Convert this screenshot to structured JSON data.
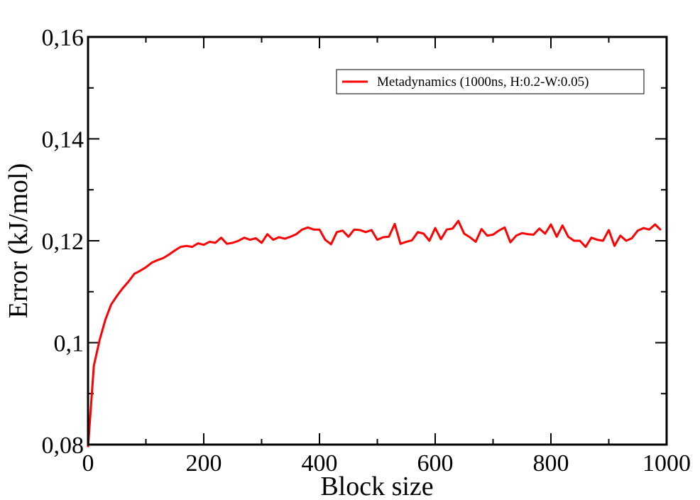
{
  "chart_data": {
    "type": "line",
    "title": "",
    "xlabel": "Block size",
    "ylabel": "Error (kJ/mol)",
    "xlim": [
      0,
      1000
    ],
    "ylim": [
      0.08,
      0.16
    ],
    "x_ticks": [
      {
        "value": 0,
        "label": "0"
      },
      {
        "value": 200,
        "label": "200"
      },
      {
        "value": 400,
        "label": "400"
      },
      {
        "value": 600,
        "label": "600"
      },
      {
        "value": 800,
        "label": "800"
      },
      {
        "value": 1000,
        "label": "1000"
      }
    ],
    "y_ticks": [
      {
        "value": 0.08,
        "label": "0,08"
      },
      {
        "value": 0.1,
        "label": "0,1"
      },
      {
        "value": 0.12,
        "label": "0,12"
      },
      {
        "value": 0.14,
        "label": "0,14"
      },
      {
        "value": 0.16,
        "label": "0,16"
      }
    ],
    "x_minor_step": 100,
    "y_minor_step": 0.01,
    "grid": false,
    "legend_position": "top-right",
    "series": [
      {
        "name": "Metadynamics (1000ns, H:0.2-W:0.05)",
        "color": "#ff0000",
        "x": [
          0,
          10,
          20,
          30,
          40,
          50,
          60,
          70,
          80,
          90,
          100,
          110,
          120,
          130,
          140,
          150,
          160,
          170,
          180,
          190,
          200,
          210,
          220,
          230,
          240,
          250,
          260,
          270,
          280,
          290,
          300,
          310,
          320,
          330,
          340,
          350,
          360,
          370,
          380,
          390,
          400,
          410,
          420,
          430,
          440,
          450,
          460,
          470,
          480,
          490,
          500,
          510,
          520,
          530,
          540,
          550,
          560,
          570,
          580,
          590,
          600,
          610,
          620,
          630,
          640,
          650,
          660,
          670,
          680,
          690,
          700,
          710,
          720,
          730,
          740,
          750,
          760,
          770,
          780,
          790,
          800,
          810,
          820,
          830,
          840,
          850,
          860,
          870,
          880,
          890,
          900,
          910,
          920,
          930,
          940,
          950,
          960,
          970,
          980,
          990
        ],
        "y": [
          0.0795,
          0.0955,
          0.1005,
          0.1045,
          0.1075,
          0.1092,
          0.1107,
          0.112,
          0.1135,
          0.1141,
          0.1148,
          0.1157,
          0.1162,
          0.1166,
          0.1173,
          0.1181,
          0.1188,
          0.119,
          0.1188,
          0.1195,
          0.1192,
          0.1198,
          0.1196,
          0.1206,
          0.1194,
          0.1196,
          0.12,
          0.1206,
          0.1202,
          0.1205,
          0.1196,
          0.1213,
          0.1202,
          0.1207,
          0.1204,
          0.1208,
          0.1213,
          0.1222,
          0.1226,
          0.1222,
          0.1222,
          0.1202,
          0.1193,
          0.1217,
          0.122,
          0.1208,
          0.1222,
          0.1221,
          0.1217,
          0.1221,
          0.1202,
          0.1207,
          0.1208,
          0.1233,
          0.1194,
          0.1198,
          0.1201,
          0.1217,
          0.1214,
          0.12,
          0.1225,
          0.1203,
          0.1222,
          0.1224,
          0.1239,
          0.1214,
          0.1207,
          0.1198,
          0.1223,
          0.121,
          0.1212,
          0.122,
          0.1226,
          0.1197,
          0.121,
          0.1215,
          0.1213,
          0.1212,
          0.1224,
          0.1214,
          0.1232,
          0.1208,
          0.123,
          0.1208,
          0.12,
          0.12,
          0.1188,
          0.1206,
          0.1202,
          0.12,
          0.1221,
          0.119,
          0.121,
          0.12,
          0.1205,
          0.122,
          0.1225,
          0.1222,
          0.1232,
          0.1221
        ]
      }
    ]
  }
}
